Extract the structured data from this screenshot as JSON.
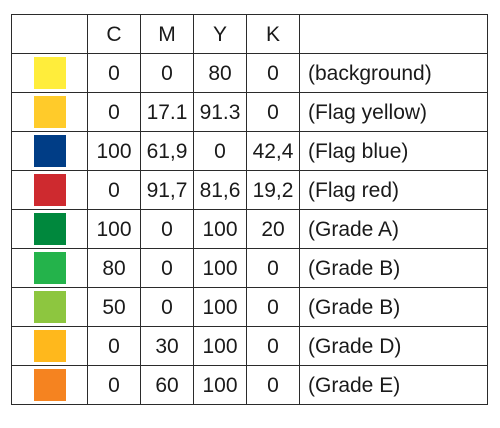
{
  "table": {
    "headers": [
      "",
      "C",
      "M",
      "Y",
      "K",
      ""
    ],
    "rows": [
      {
        "color": "#ffed3b",
        "c": "0",
        "m": "0",
        "y": "80",
        "k": "0",
        "label": "(background)"
      },
      {
        "color": "#ffcb2a",
        "c": "0",
        "m": "17.1",
        "y": "91.3",
        "k": "0",
        "label": "(Flag yellow)"
      },
      {
        "color": "#003d86",
        "c": "100",
        "m": "61,9",
        "y": "0",
        "k": "42,4",
        "label": "(Flag blue)"
      },
      {
        "color": "#ce2a2f",
        "c": "0",
        "m": "91,7",
        "y": "81,6",
        "k": "19,2",
        "label": "(Flag red)"
      },
      {
        "color": "#00883d",
        "c": "100",
        "m": "0",
        "y": "100",
        "k": "20",
        "label": "(Grade A)"
      },
      {
        "color": "#24b34b",
        "c": "80",
        "m": "0",
        "y": "100",
        "k": "0",
        "label": "(Grade B)"
      },
      {
        "color": "#8dc63f",
        "c": "50",
        "m": "0",
        "y": "100",
        "k": "0",
        "label": "(Grade B)"
      },
      {
        "color": "#ffb81c",
        "c": "0",
        "m": "30",
        "y": "100",
        "k": "0",
        "label": "(Grade D)"
      },
      {
        "color": "#f58320",
        "c": "0",
        "m": "60",
        "y": "100",
        "k": "0",
        "label": "(Grade E)"
      }
    ]
  }
}
